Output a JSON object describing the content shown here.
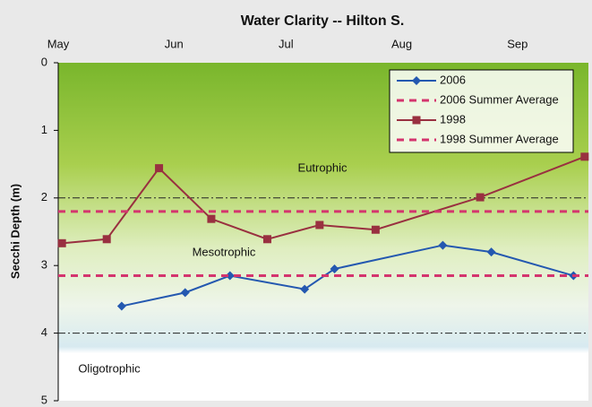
{
  "chart_data": {
    "type": "line",
    "title": "Water Clarity -- Hilton S.",
    "y_label": "Secchi Depth (m)",
    "xlim": [
      121,
      263
    ],
    "xticks": [
      {
        "value": 121,
        "label": "May"
      },
      {
        "value": 152,
        "label": "Jun"
      },
      {
        "value": 182,
        "label": "Jul"
      },
      {
        "value": 213,
        "label": "Aug"
      },
      {
        "value": 244,
        "label": "Sep"
      }
    ],
    "ylim": [
      0,
      5
    ],
    "yticks": [
      0,
      1,
      2,
      3,
      4,
      5
    ],
    "y_inverted": true,
    "legend": "top-right",
    "thresholds": [
      2,
      4
    ],
    "annotations": [
      "Eutrophic",
      "Mesotrophic",
      "Oligotrophic"
    ],
    "series": [
      {
        "name": "2006",
        "color": "#2458b0",
        "marker": "diamond",
        "x": [
          138,
          155,
          167,
          187,
          195,
          224,
          237,
          259
        ],
        "values": [
          3.6,
          3.4,
          3.15,
          3.35,
          3.05,
          2.7,
          2.8,
          3.15
        ]
      },
      {
        "name": "2006 Summer Average",
        "color": "#d4356e",
        "value": 3.15
      },
      {
        "name": "1998",
        "color": "#993040",
        "marker": "square",
        "x": [
          122,
          134,
          148,
          162,
          177,
          191,
          206,
          234,
          262
        ],
        "values": [
          2.67,
          2.61,
          1.56,
          2.31,
          2.61,
          2.4,
          2.47,
          1.99,
          1.39
        ]
      },
      {
        "name": "1998 Summer Average",
        "color": "#d4356e",
        "value": 2.2
      }
    ]
  }
}
